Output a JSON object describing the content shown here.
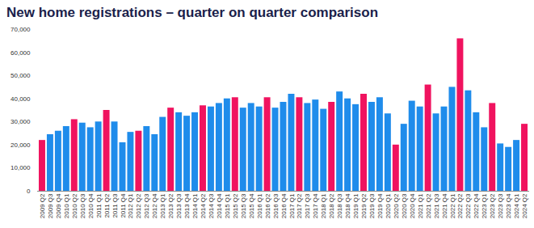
{
  "chart_data": {
    "type": "bar",
    "title": "New home registrations – quarter on quarter comparison",
    "categories": [
      "2009 Q2",
      "2009 Q3",
      "2009 Q4",
      "2010 Q1",
      "2010 Q2",
      "2010 Q3",
      "2010 Q4",
      "2011 Q1",
      "2011 Q2",
      "2011 Q3",
      "2011 Q4",
      "2012 Q1",
      "2012 Q2",
      "2012 Q3",
      "2012 Q4",
      "2013 Q1",
      "2013 Q2",
      "2013 Q3",
      "2013 Q4",
      "2014 Q1",
      "2014 Q2",
      "2014 Q3",
      "2014 Q4",
      "2015 Q1",
      "2015 Q2",
      "2015 Q3",
      "2015 Q4",
      "2016 Q1",
      "2016 Q2",
      "2016 Q3",
      "2016 Q4",
      "2017 Q1",
      "2017 Q2",
      "2017 Q3",
      "2017 Q4",
      "2018 Q1",
      "2018 Q2",
      "2018 Q3",
      "2018 Q4",
      "2019 Q1",
      "2019 Q2",
      "2019 Q3",
      "2019 Q4",
      "2020 Q1",
      "2020 Q2",
      "2020 Q3",
      "2020 Q4",
      "2021 Q1",
      "2021 Q2",
      "2021 Q3",
      "2021 Q4",
      "2022 Q1",
      "2022 Q2",
      "2022 Q3",
      "2022 Q4",
      "2023 Q1",
      "2023 Q2",
      "2023 Q3",
      "2023 Q4",
      "2024 Q1",
      "2024 Q2"
    ],
    "values": [
      22000,
      24500,
      26000,
      28000,
      31000,
      29500,
      27500,
      30000,
      35000,
      30000,
      21000,
      25500,
      26000,
      28000,
      24500,
      32000,
      36000,
      34000,
      32500,
      34000,
      37000,
      36500,
      38000,
      40000,
      40500,
      36000,
      38000,
      36500,
      40500,
      36000,
      38500,
      42000,
      40500,
      38000,
      39500,
      35500,
      38500,
      43000,
      40000,
      37500,
      42000,
      38500,
      40500,
      33500,
      20000,
      29000,
      39000,
      36500,
      46000,
      33500,
      36500,
      45000,
      66000,
      43500,
      34000,
      27500,
      38000,
      20500,
      19000,
      22000,
      29000
    ],
    "colors": [
      "#f0135f",
      "#1f8ceb",
      "#1f8ceb",
      "#1f8ceb",
      "#f0135f",
      "#1f8ceb",
      "#1f8ceb",
      "#1f8ceb",
      "#f0135f",
      "#1f8ceb",
      "#1f8ceb",
      "#1f8ceb",
      "#f0135f",
      "#1f8ceb",
      "#1f8ceb",
      "#1f8ceb",
      "#f0135f",
      "#1f8ceb",
      "#1f8ceb",
      "#1f8ceb",
      "#f0135f",
      "#1f8ceb",
      "#1f8ceb",
      "#1f8ceb",
      "#f0135f",
      "#1f8ceb",
      "#1f8ceb",
      "#1f8ceb",
      "#f0135f",
      "#1f8ceb",
      "#1f8ceb",
      "#1f8ceb",
      "#f0135f",
      "#1f8ceb",
      "#1f8ceb",
      "#1f8ceb",
      "#f0135f",
      "#1f8ceb",
      "#1f8ceb",
      "#1f8ceb",
      "#f0135f",
      "#1f8ceb",
      "#1f8ceb",
      "#1f8ceb",
      "#f0135f",
      "#1f8ceb",
      "#1f8ceb",
      "#1f8ceb",
      "#f0135f",
      "#1f8ceb",
      "#1f8ceb",
      "#1f8ceb",
      "#f0135f",
      "#1f8ceb",
      "#1f8ceb",
      "#1f8ceb",
      "#f0135f",
      "#1f8ceb",
      "#1f8ceb",
      "#1f8ceb",
      "#f0135f"
    ],
    "ylim": [
      0,
      70000
    ],
    "yticks": [
      0,
      {
        "value": 10000,
        "label": "10,000"
      },
      {
        "value": 20000,
        "label": "20,000"
      },
      {
        "value": 30000,
        "label": "30,000"
      },
      {
        "value": 40000,
        "label": "40,000"
      },
      {
        "value": 50000,
        "label": "50,000"
      },
      {
        "value": 60000,
        "label": "60,000"
      },
      {
        "value": 70000,
        "label": "70,000"
      }
    ],
    "grid": false
  }
}
